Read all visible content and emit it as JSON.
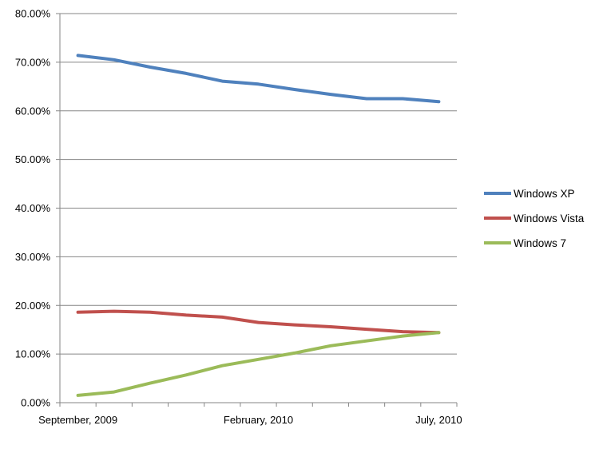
{
  "chart_data": {
    "type": "line",
    "title": "",
    "xlabel": "",
    "ylabel": "",
    "x": [
      "Sep 2009",
      "Oct 2009",
      "Nov 2009",
      "Dec 2009",
      "Jan 2010",
      "Feb 2010",
      "Mar 2010",
      "Apr 2010",
      "May 2010",
      "Jun 2010",
      "Jul 2010"
    ],
    "x_tick_labels": [
      {
        "index": 0,
        "label": "September, 2009"
      },
      {
        "index": 5,
        "label": "February, 2010"
      },
      {
        "index": 10,
        "label": "July, 2010"
      }
    ],
    "y_tick_labels": [
      "0.00%",
      "10.00%",
      "20.00%",
      "30.00%",
      "40.00%",
      "50.00%",
      "60.00%",
      "70.00%",
      "80.00%"
    ],
    "ylim": [
      0,
      80
    ],
    "y_unit": "percent",
    "grid": "horizontal",
    "legend_position": "right",
    "series": [
      {
        "name": "Windows XP",
        "color": "#4F81BD",
        "values": [
          71.4,
          70.5,
          69.0,
          67.7,
          66.1,
          65.5,
          64.4,
          63.4,
          62.5,
          62.5,
          61.9
        ]
      },
      {
        "name": "Windows Vista",
        "color": "#C0504D",
        "values": [
          18.6,
          18.8,
          18.6,
          18.0,
          17.6,
          16.5,
          16.0,
          15.6,
          15.1,
          14.6,
          14.4
        ]
      },
      {
        "name": "Windows 7",
        "color": "#9BBB59",
        "values": [
          1.5,
          2.2,
          4.0,
          5.7,
          7.6,
          8.9,
          10.2,
          11.7,
          12.7,
          13.7,
          14.4
        ]
      }
    ]
  }
}
